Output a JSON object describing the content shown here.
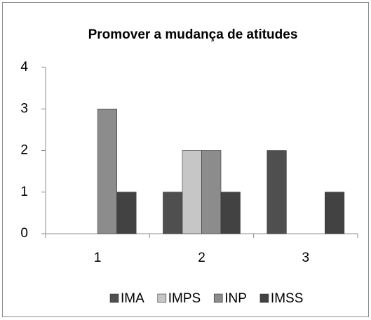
{
  "chart_data": {
    "type": "bar",
    "title": "Promover a mudança de atitudes",
    "categories": [
      "1",
      "2",
      "3"
    ],
    "series": [
      {
        "name": "IMA",
        "color": "#4f4f4f",
        "values": [
          0,
          1,
          2
        ]
      },
      {
        "name": "IMPS",
        "color": "#c6c6c6",
        "values": [
          0,
          2,
          0
        ]
      },
      {
        "name": "INP",
        "color": "#8c8c8c",
        "values": [
          3,
          2,
          0
        ]
      },
      {
        "name": "IMSS",
        "color": "#424242",
        "values": [
          1,
          1,
          1
        ]
      }
    ],
    "ylim": [
      0,
      4
    ],
    "yticks": [
      0,
      1,
      2,
      3,
      4
    ],
    "legend": "bottom"
  }
}
